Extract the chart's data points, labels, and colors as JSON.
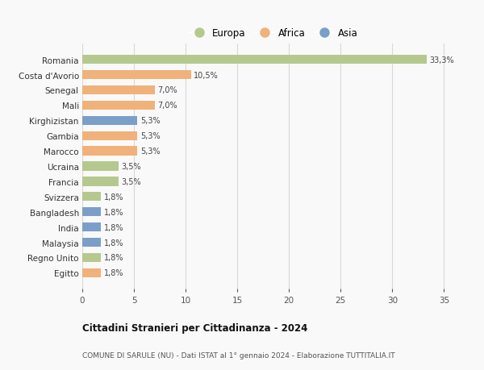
{
  "categories": [
    "Romania",
    "Costa d'Avorio",
    "Senegal",
    "Mali",
    "Kirghizistan",
    "Gambia",
    "Marocco",
    "Ucraina",
    "Francia",
    "Svizzera",
    "Bangladesh",
    "India",
    "Malaysia",
    "Regno Unito",
    "Egitto"
  ],
  "values": [
    33.3,
    10.5,
    7.0,
    7.0,
    5.3,
    5.3,
    5.3,
    3.5,
    3.5,
    1.8,
    1.8,
    1.8,
    1.8,
    1.8,
    1.8
  ],
  "labels": [
    "33,3%",
    "10,5%",
    "7,0%",
    "7,0%",
    "5,3%",
    "5,3%",
    "5,3%",
    "3,5%",
    "3,5%",
    "1,8%",
    "1,8%",
    "1,8%",
    "1,8%",
    "1,8%",
    "1,8%"
  ],
  "continents": [
    "Europa",
    "Africa",
    "Africa",
    "Africa",
    "Asia",
    "Africa",
    "Africa",
    "Europa",
    "Europa",
    "Europa",
    "Asia",
    "Asia",
    "Asia",
    "Europa",
    "Africa"
  ],
  "colors": {
    "Europa": "#b5c98e",
    "Africa": "#f0b27a",
    "Asia": "#7b9fc8"
  },
  "title": "Cittadini Stranieri per Cittadinanza - 2024",
  "subtitle": "COMUNE DI SARULE (NU) - Dati ISTAT al 1° gennaio 2024 - Elaborazione TUTTITALIA.IT",
  "xlim": [
    0,
    37
  ],
  "xticks": [
    0,
    5,
    10,
    15,
    20,
    25,
    30,
    35
  ],
  "bg_color": "#f9f9f9",
  "grid_color": "#d8d8d8"
}
